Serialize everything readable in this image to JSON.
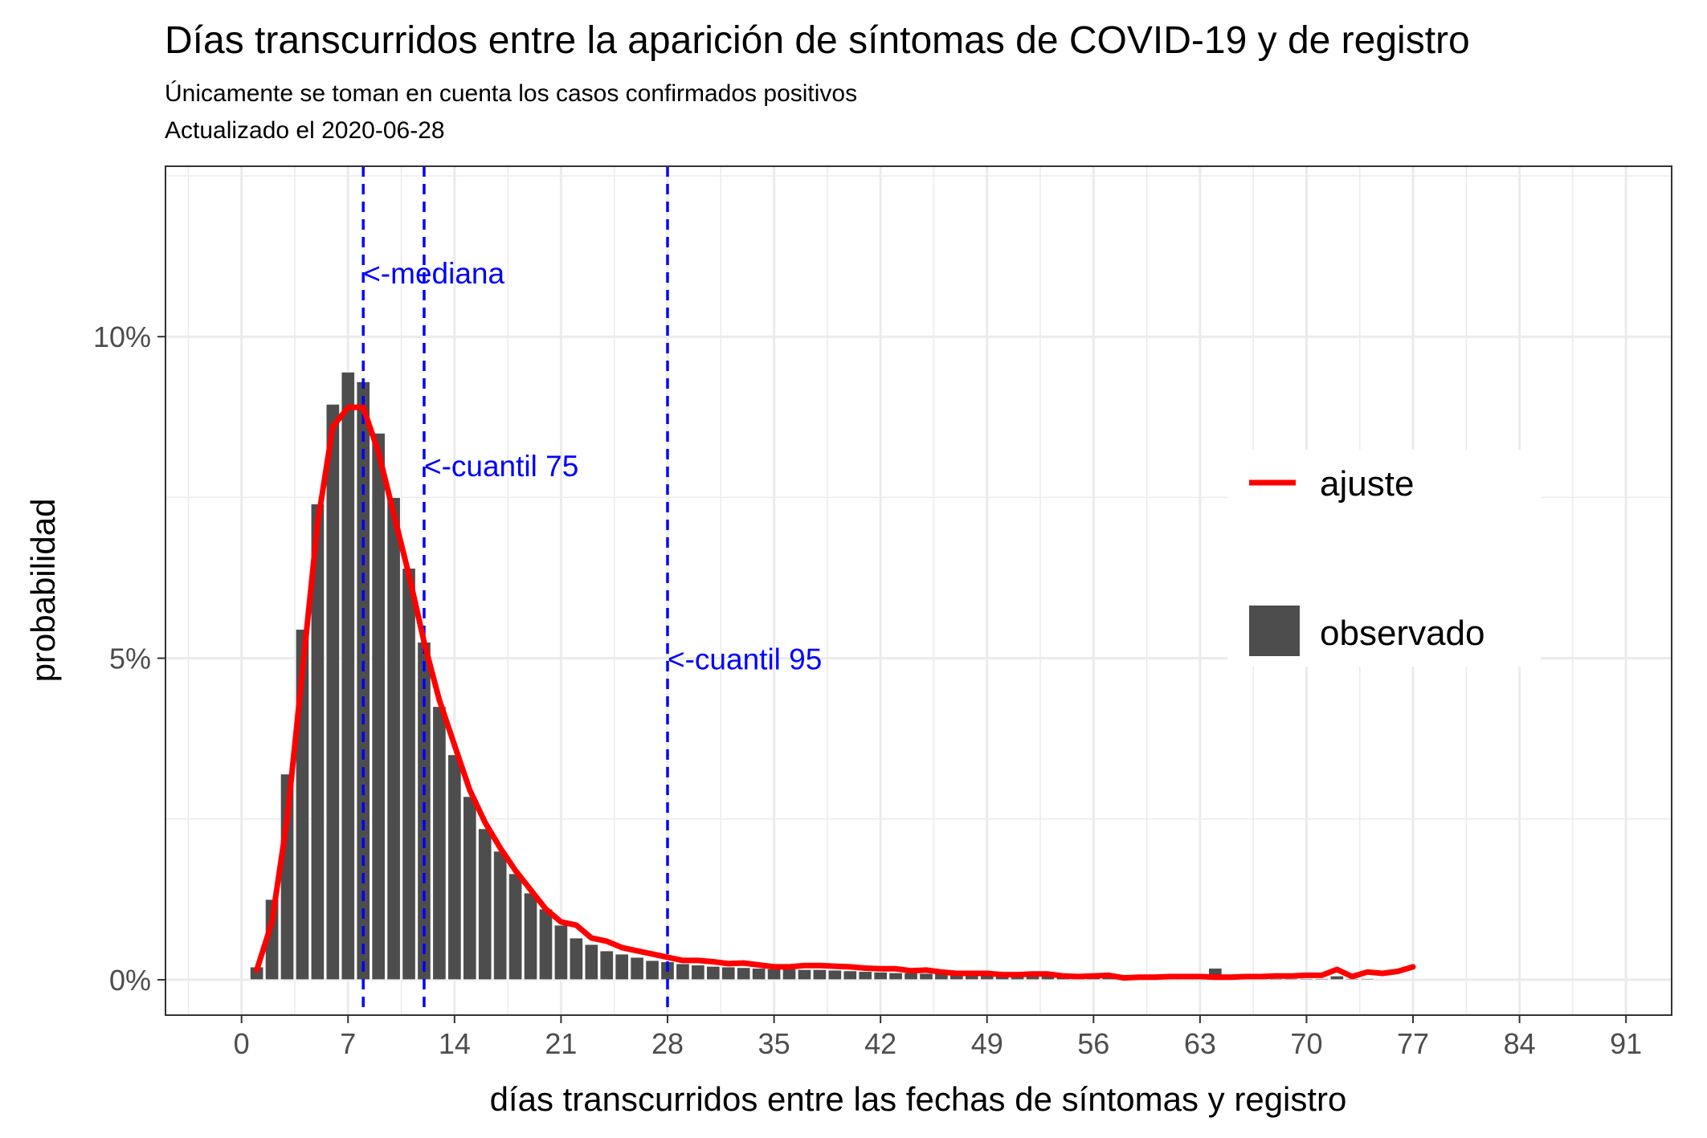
{
  "chart_data": {
    "type": "bar",
    "title": "Días transcurridos entre la aparición de síntomas de COVID-19 y de registro",
    "subtitle_lines": [
      "Únicamente se toman en cuenta los casos confirmados positivos",
      "Actualizado el  2020-06-28"
    ],
    "xlabel": "días transcurridos entre las fechas de síntomas y registro",
    "ylabel": "probabilidad",
    "xlim": [
      -5,
      94
    ],
    "ylim": [
      -0.0055,
      0.1265
    ],
    "x_ticks": [
      0,
      7,
      14,
      21,
      28,
      35,
      42,
      49,
      56,
      63,
      70,
      77,
      84,
      91
    ],
    "y_ticks": [
      {
        "value": 0,
        "label": "0%"
      },
      {
        "value": 0.05,
        "label": "5%"
      },
      {
        "value": 0.1,
        "label": "10%"
      }
    ],
    "y_minor_ticks": [
      0.025,
      0.075,
      0.125
    ],
    "grid": true,
    "legend_position": "right-inside",
    "colors": {
      "bars": "#4d4d4d",
      "fit_line": "#ff0000",
      "reference_lines": "#0000ff",
      "grid": "#ebebeb"
    },
    "series": [
      {
        "name": "observado",
        "kind": "bar",
        "x": [
          1,
          2,
          3,
          4,
          5,
          6,
          7,
          8,
          9,
          10,
          11,
          12,
          13,
          14,
          15,
          16,
          17,
          18,
          19,
          20,
          21,
          22,
          23,
          24,
          25,
          26,
          27,
          28,
          29,
          30,
          31,
          32,
          33,
          34,
          35,
          36,
          37,
          38,
          39,
          40,
          41,
          42,
          43,
          44,
          45,
          46,
          47,
          48,
          49,
          50,
          51,
          52,
          53,
          54,
          55,
          56,
          57,
          58,
          59,
          60,
          61,
          62,
          63,
          64,
          65,
          66,
          67,
          68,
          69,
          70,
          71,
          72,
          73,
          74
        ],
        "values": [
          0.002,
          0.0125,
          0.032,
          0.0545,
          0.074,
          0.0895,
          0.0945,
          0.093,
          0.085,
          0.075,
          0.064,
          0.0525,
          0.0425,
          0.035,
          0.0285,
          0.0235,
          0.02,
          0.0165,
          0.0135,
          0.011,
          0.0085,
          0.0065,
          0.0055,
          0.0045,
          0.004,
          0.0035,
          0.003,
          0.0028,
          0.0025,
          0.0023,
          0.0021,
          0.002,
          0.0019,
          0.0018,
          0.0017,
          0.0017,
          0.0016,
          0.0016,
          0.0015,
          0.0014,
          0.0013,
          0.0012,
          0.0011,
          0.0011,
          0.001,
          0.001,
          0.0009,
          0.0009,
          0.0008,
          0.0008,
          0.0007,
          0.0007,
          0.0006,
          0.0006,
          0.0005,
          0.0005,
          0.0005,
          0.0004,
          0.0004,
          0.0004,
          0.0004,
          0.0003,
          0.0003,
          0.0018,
          0.0003,
          0.0003,
          0.0003,
          0.0002,
          0.0002,
          0.0002,
          0.0002,
          0.0006,
          0.0002,
          0.0002
        ]
      },
      {
        "name": "ajuste",
        "kind": "line",
        "x": [
          1,
          2,
          3,
          4,
          5,
          6,
          7,
          8,
          9,
          10,
          11,
          12,
          13,
          14,
          15,
          16,
          17,
          18,
          19,
          20,
          21,
          22,
          23,
          24,
          25,
          26,
          27,
          28,
          29,
          30,
          31,
          32,
          33,
          34,
          35,
          36,
          37,
          38,
          39,
          40,
          41,
          42,
          43,
          44,
          45,
          46,
          47,
          48,
          49,
          50,
          51,
          52,
          53,
          54,
          55,
          56,
          57,
          58,
          59,
          60,
          61,
          62,
          63,
          64,
          65,
          66,
          67,
          68,
          69,
          70,
          71,
          72,
          73,
          74,
          75,
          76,
          77
        ],
        "values": [
          0.0015,
          0.009,
          0.025,
          0.048,
          0.071,
          0.086,
          0.089,
          0.089,
          0.082,
          0.0725,
          0.063,
          0.0525,
          0.0435,
          0.0365,
          0.0295,
          0.0245,
          0.0205,
          0.017,
          0.014,
          0.011,
          0.009,
          0.0085,
          0.0065,
          0.006,
          0.005,
          0.0045,
          0.004,
          0.0035,
          0.003,
          0.003,
          0.0028,
          0.0025,
          0.0026,
          0.0023,
          0.002,
          0.002,
          0.0022,
          0.0022,
          0.0021,
          0.002,
          0.0018,
          0.0017,
          0.0017,
          0.0014,
          0.0015,
          0.0012,
          0.001,
          0.001,
          0.001,
          0.0008,
          0.0008,
          0.0009,
          0.0009,
          0.0006,
          0.0005,
          0.0006,
          0.0007,
          0.0003,
          0.0004,
          0.0004,
          0.0005,
          0.0005,
          0.0005,
          0.0004,
          0.0004,
          0.0005,
          0.0005,
          0.0006,
          0.0006,
          0.0007,
          0.0007,
          0.0016,
          0.0005,
          0.0012,
          0.001,
          0.0013,
          0.002
        ]
      }
    ],
    "reference_lines": [
      {
        "x": 8,
        "label": "<-mediana",
        "label_y": 0.1095
      },
      {
        "x": 12,
        "label": "<-cuantil 75",
        "label_y": 0.0795
      },
      {
        "x": 28,
        "label": "<-cuantil 95",
        "label_y": 0.0495
      }
    ],
    "legend": [
      {
        "label": "ajuste",
        "symbol": "line"
      },
      {
        "label": "observado",
        "symbol": "box"
      }
    ]
  }
}
